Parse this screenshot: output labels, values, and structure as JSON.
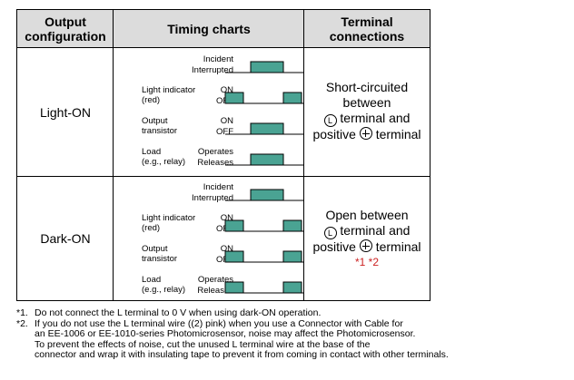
{
  "colors": {
    "header_bg": "#dcdcdc",
    "pulse": "#4aa393",
    "note_marker": "#cc2222"
  },
  "table": {
    "headers": [
      "Output\nconfiguration",
      "Timing charts",
      "Terminal\nconnections"
    ],
    "rows": [
      {
        "config": "Light-ON",
        "terminal": {
          "line1": "Short-circuited",
          "line2": "between",
          "line3_suffix": "terminal and",
          "line4_prefix": "positive",
          "line4_suffix": "terminal",
          "notes": ""
        },
        "timing": {
          "signals": [
            {
              "label": "",
              "states": [
                "Incident",
                "Interrupted"
              ]
            },
            {
              "label": "Light indicator\n(red)",
              "states": [
                "ON",
                "OFF"
              ]
            },
            {
              "label": "Output\ntransistor",
              "states": [
                "ON",
                "OFF"
              ]
            },
            {
              "label": "Load\n(e.g., relay)",
              "states": [
                "Operates",
                "Releases"
              ]
            }
          ]
        }
      },
      {
        "config": "Dark-ON",
        "terminal": {
          "line1": "Open between",
          "line2": "",
          "line3_suffix": "terminal and",
          "line4_prefix": "positive",
          "line4_suffix": "terminal",
          "notes": "*1 *2"
        },
        "timing": {
          "signals": [
            {
              "label": "",
              "states": [
                "Incident",
                "Interrupted"
              ]
            },
            {
              "label": "Light indicator\n(red)",
              "states": [
                "ON",
                "OFF"
              ]
            },
            {
              "label": "Output\ntransistor",
              "states": [
                "ON",
                "OFF"
              ]
            },
            {
              "label": "Load\n(e.g., relay)",
              "states": [
                "Operates",
                "Releases"
              ]
            }
          ]
        }
      }
    ]
  },
  "symbols": {
    "L_terminal": "L"
  },
  "footnotes": [
    {
      "marker": "*1.",
      "lines": [
        "Do not connect the L terminal to 0 V when using dark-ON operation."
      ]
    },
    {
      "marker": "*2.",
      "lines": [
        "If you do not use the L terminal wire ((2) pink) when you use a Connector with Cable for",
        "an EE-1006 or EE-1010-series Photomicrosensor, noise may affect the Photomicrosensor.",
        "To prevent the effects of noise, cut the unused L terminal wire at the base of the",
        "connector and wrap it with insulating tape to prevent it from coming in contact with other terminals."
      ]
    }
  ]
}
